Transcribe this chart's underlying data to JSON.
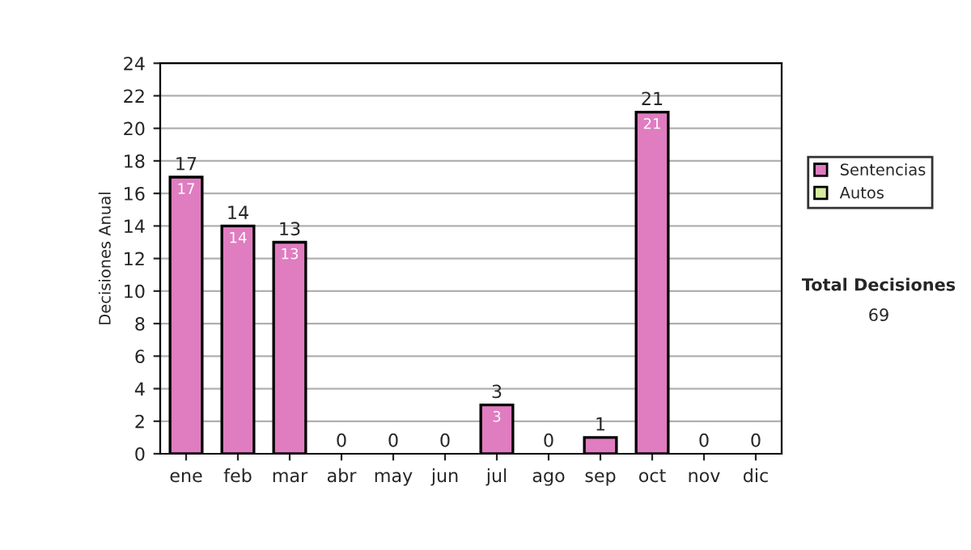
{
  "chart_data": {
    "type": "bar",
    "stacked": true,
    "ylabel": "Decisiones Anual",
    "categories": [
      "ene",
      "feb",
      "mar",
      "abr",
      "may",
      "jun",
      "jul",
      "ago",
      "sep",
      "oct",
      "nov",
      "dic"
    ],
    "series": [
      {
        "name": "Sentencias",
        "color": "#e07cc0",
        "values": [
          17,
          14,
          13,
          0,
          0,
          0,
          3,
          0,
          1,
          21,
          0,
          0
        ],
        "value_labels": [
          "17",
          "14",
          "13",
          null,
          null,
          null,
          "3",
          null,
          null,
          "21",
          null,
          null
        ]
      },
      {
        "name": "Autos",
        "color": "#d8eca0",
        "values": [
          0,
          0,
          0,
          0,
          0,
          0,
          0,
          0,
          0,
          0,
          0,
          0
        ]
      }
    ],
    "totals": [
      "17",
      "14",
      "13",
      "0",
      "0",
      "0",
      "3",
      "0",
      "1",
      "21",
      "0",
      "0"
    ],
    "ylim": [
      0,
      24
    ],
    "yticks": [
      0,
      2,
      4,
      6,
      8,
      10,
      12,
      14,
      16,
      18,
      20,
      22,
      24
    ],
    "grid": "y",
    "legend": "right",
    "annotations": [
      "Total Decisiones",
      "69"
    ]
  }
}
